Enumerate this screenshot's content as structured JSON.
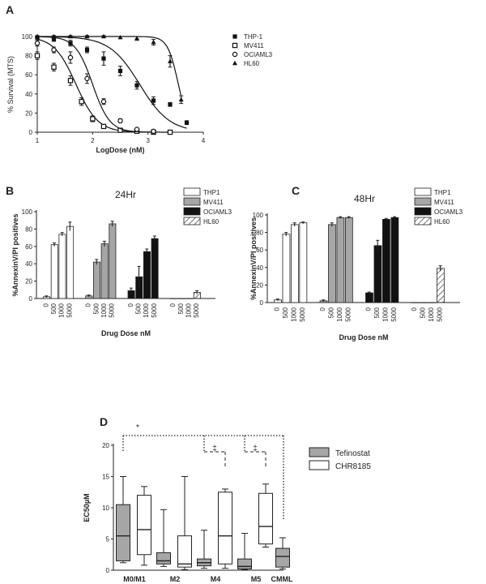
{
  "chart_data": [
    {
      "panel": "A",
      "type": "line",
      "xlabel": "LogDose (nM)",
      "ylabel": "% Survival (MTS)",
      "xlim": [
        1,
        4
      ],
      "ylim": [
        0,
        100
      ],
      "xticks": [
        "1",
        "2",
        "3",
        "4"
      ],
      "yticks": [
        "0",
        "20",
        "40",
        "60",
        "80",
        "100"
      ],
      "legend_position": "right",
      "series": [
        {
          "name": "THP-1",
          "marker": "filled-square",
          "x": [
            1.0,
            1.3,
            1.6,
            1.9,
            2.2,
            2.5,
            2.8,
            3.1,
            3.4,
            3.7
          ],
          "y": [
            99,
            97,
            93,
            86,
            77,
            64,
            49,
            33,
            29,
            10
          ],
          "err": [
            1,
            2,
            3,
            3,
            7,
            5,
            4,
            4,
            2,
            2
          ],
          "ic50": 2.85,
          "hill": 1.6
        },
        {
          "name": "MV411",
          "marker": "open-square",
          "x": [
            1.0,
            1.3,
            1.6,
            1.8,
            2.0,
            2.2,
            2.5,
            2.8,
            3.1,
            3.4
          ],
          "y": [
            80,
            68,
            54,
            32,
            14,
            6,
            2,
            1,
            0,
            0
          ],
          "err": [
            4,
            4,
            5,
            4,
            3,
            2,
            1,
            1,
            0,
            0
          ],
          "ic50": 1.7,
          "hill": 2.2
        },
        {
          "name": "OCIAML3",
          "marker": "open-circle",
          "x": [
            1.0,
            1.3,
            1.6,
            1.9,
            2.2,
            2.5,
            2.8,
            3.1
          ],
          "y": [
            93,
            86,
            78,
            56,
            32,
            12,
            3,
            1
          ],
          "err": [
            3,
            3,
            6,
            5,
            3,
            2,
            1,
            0
          ],
          "ic50": 2.0,
          "hill": 2.8
        },
        {
          "name": "HL60",
          "marker": "filled-triangle",
          "x": [
            1.0,
            1.3,
            1.6,
            1.9,
            2.2,
            2.5,
            2.8,
            3.1,
            3.4,
            3.6
          ],
          "y": [
            100,
            100,
            100,
            100,
            100,
            99,
            98,
            94,
            74,
            34
          ],
          "err": [
            1,
            1,
            1,
            1,
            1,
            1,
            2,
            3,
            6,
            4
          ],
          "ic50": 3.55,
          "hill": 4.5
        }
      ]
    },
    {
      "panel": "B",
      "type": "bar",
      "title": "24Hr",
      "xlabel": "Drug Dose nM",
      "ylabel": "%AnnexinV/PI positives",
      "ylim": [
        0,
        100
      ],
      "yticks": [
        "0",
        "20",
        "40",
        "60",
        "80",
        "100"
      ],
      "doses": [
        "0",
        "500",
        "1000",
        "5000"
      ],
      "legend_position": "right",
      "series": [
        {
          "name": "THP1",
          "fill": "white",
          "values": [
            2,
            62,
            74,
            83
          ],
          "err": [
            1,
            2,
            2,
            5
          ]
        },
        {
          "name": "MV411",
          "fill": "gray",
          "values": [
            3,
            42,
            63,
            86
          ],
          "err": [
            1,
            3,
            3,
            3
          ]
        },
        {
          "name": "OCIAML3",
          "fill": "black",
          "values": [
            9,
            25,
            54,
            69
          ],
          "err": [
            3,
            12,
            3,
            3
          ]
        },
        {
          "name": "HL60",
          "fill": "hatched",
          "values": [
            0,
            0,
            0,
            7
          ],
          "err": [
            0,
            0,
            0,
            2
          ]
        }
      ]
    },
    {
      "panel": "C",
      "type": "bar",
      "title": "48Hr",
      "xlabel": "Drug Dose nM",
      "ylabel": "%AnnexinV/PI positives",
      "ylim": [
        0,
        100
      ],
      "yticks": [
        "0",
        "20",
        "40",
        "60",
        "80",
        "100"
      ],
      "doses": [
        "0",
        "500",
        "1000",
        "5000"
      ],
      "legend_position": "right",
      "series": [
        {
          "name": "THP1",
          "fill": "white",
          "values": [
            3,
            78,
            89,
            91
          ],
          "err": [
            1,
            2,
            2,
            1
          ]
        },
        {
          "name": "MV411",
          "fill": "gray",
          "values": [
            2,
            89,
            97,
            97
          ],
          "err": [
            1,
            2,
            1,
            1
          ]
        },
        {
          "name": "OCIAML3",
          "fill": "black",
          "values": [
            11,
            65,
            95,
            97
          ],
          "err": [
            1,
            6,
            1,
            1
          ]
        },
        {
          "name": "HL60",
          "fill": "hatched",
          "values": [
            0,
            0,
            0,
            39
          ],
          "err": [
            0,
            0,
            0,
            3
          ]
        }
      ]
    },
    {
      "panel": "D",
      "type": "box",
      "ylabel": "EC50µM",
      "ylim": [
        0,
        20
      ],
      "yticks": [
        "0",
        "5",
        "10",
        "15",
        "20"
      ],
      "categories": [
        "M0/M1",
        "M2",
        "M4",
        "M5",
        "CMML"
      ],
      "legend_position": "right",
      "series": [
        {
          "name": "Tefinostat",
          "fill": "gray",
          "boxes": [
            {
              "min": 1.2,
              "q1": 1.5,
              "median": 5.5,
              "q3": 10.5,
              "max": 15
            },
            {
              "min": 0.6,
              "q1": 1.0,
              "median": 1.5,
              "q3": 2.8,
              "max": 9.7
            },
            {
              "min": 0.3,
              "q1": 0.7,
              "median": 1.2,
              "q3": 1.8,
              "max": 6.4
            },
            {
              "min": 0.1,
              "q1": 0.2,
              "median": 0.6,
              "q3": 1.8,
              "max": 5.9
            },
            {
              "min": 0.2,
              "q1": 0.5,
              "median": 2.2,
              "q3": 3.5,
              "max": 5.2
            }
          ]
        },
        {
          "name": "CHR8185",
          "fill": "white",
          "boxes": [
            {
              "min": 0.8,
              "q1": 2.5,
              "median": 6.5,
              "q3": 12.0,
              "max": 13.4
            },
            {
              "min": 0.1,
              "q1": 0.5,
              "median": 1.0,
              "q3": 5.5,
              "max": 15
            },
            {
              "min": 0.3,
              "q1": 1.0,
              "median": 5.5,
              "q3": 12.5,
              "max": 13.0
            },
            {
              "min": 3.7,
              "q1": 4.2,
              "median": 7.0,
              "q3": 12.3,
              "max": 13.8
            },
            null
          ]
        }
      ],
      "annotations": [
        "*",
        "‡",
        "‡"
      ]
    }
  ]
}
